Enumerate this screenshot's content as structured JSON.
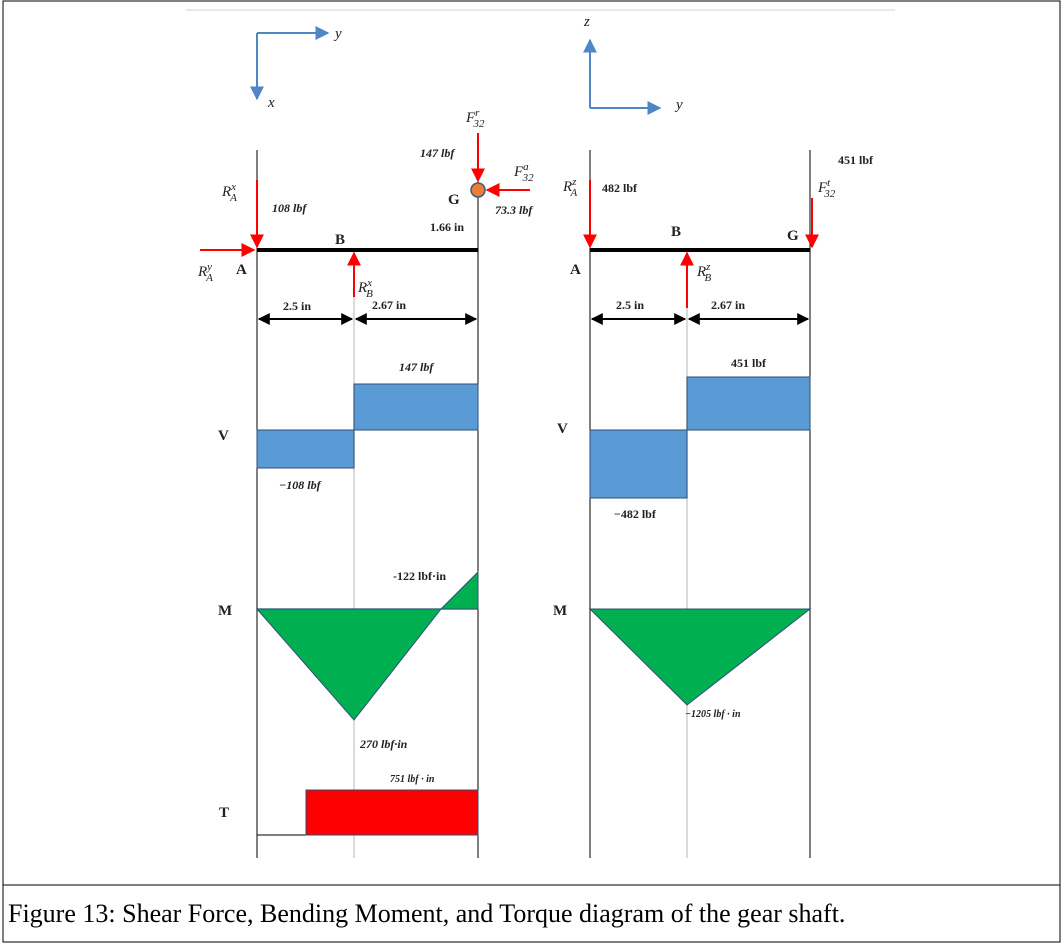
{
  "caption": "Figure 13: Shear Force, Bending Moment, and Torque diagram of the gear shaft.",
  "left": {
    "axis_right": "y",
    "axis_down": "x",
    "point_A": "A",
    "point_B": "B",
    "point_G": "G",
    "RAx": {
      "base": "R",
      "sub": "A",
      "sup": "x",
      "value": "108 lbf"
    },
    "RAy": {
      "base": "R",
      "sub": "A",
      "sup": "y"
    },
    "RBx": {
      "base": "R",
      "sub": "B",
      "sup": "x"
    },
    "Fr": {
      "base": "F",
      "sub": "32",
      "sup": "r",
      "value": "147 lbf"
    },
    "Fa": {
      "base": "F",
      "sub": "32",
      "sup": "a",
      "value": "73.3 lbf"
    },
    "radius": "1.66 in",
    "dim_AB": "2.5 in",
    "dim_BG": "2.67 in",
    "V_label": "V",
    "V_pos": "147 lbf",
    "V_neg": "−108 lbf",
    "M_label": "M",
    "M_end": "-122 lbf·in",
    "M_min": "270 lbf·in",
    "T_label": "T",
    "T_value": "751 lbf · in"
  },
  "right": {
    "axis_up": "z",
    "axis_right": "y",
    "point_A": "A",
    "point_B": "B",
    "point_G": "G",
    "RAz": {
      "base": "R",
      "sub": "A",
      "sup": "z",
      "value": "482 lbf"
    },
    "RBz": {
      "base": "R",
      "sub": "B",
      "sup": "z"
    },
    "Ft": {
      "base": "F",
      "sub": "32",
      "sup": "t",
      "value": "451 lbf"
    },
    "dim_AB": "2.5 in",
    "dim_BG": "2.67 in",
    "V_label": "V",
    "V_pos": "451 lbf",
    "V_neg": "−482 lbf",
    "M_label": "M",
    "M_min": "−1205 lbf · in"
  },
  "colors": {
    "force": "#ff0000",
    "axis": "#4f86c6",
    "shear": "#5b9bd5",
    "moment": "#00b050",
    "torque": "#ff0000",
    "gear": "#ed7d31"
  }
}
